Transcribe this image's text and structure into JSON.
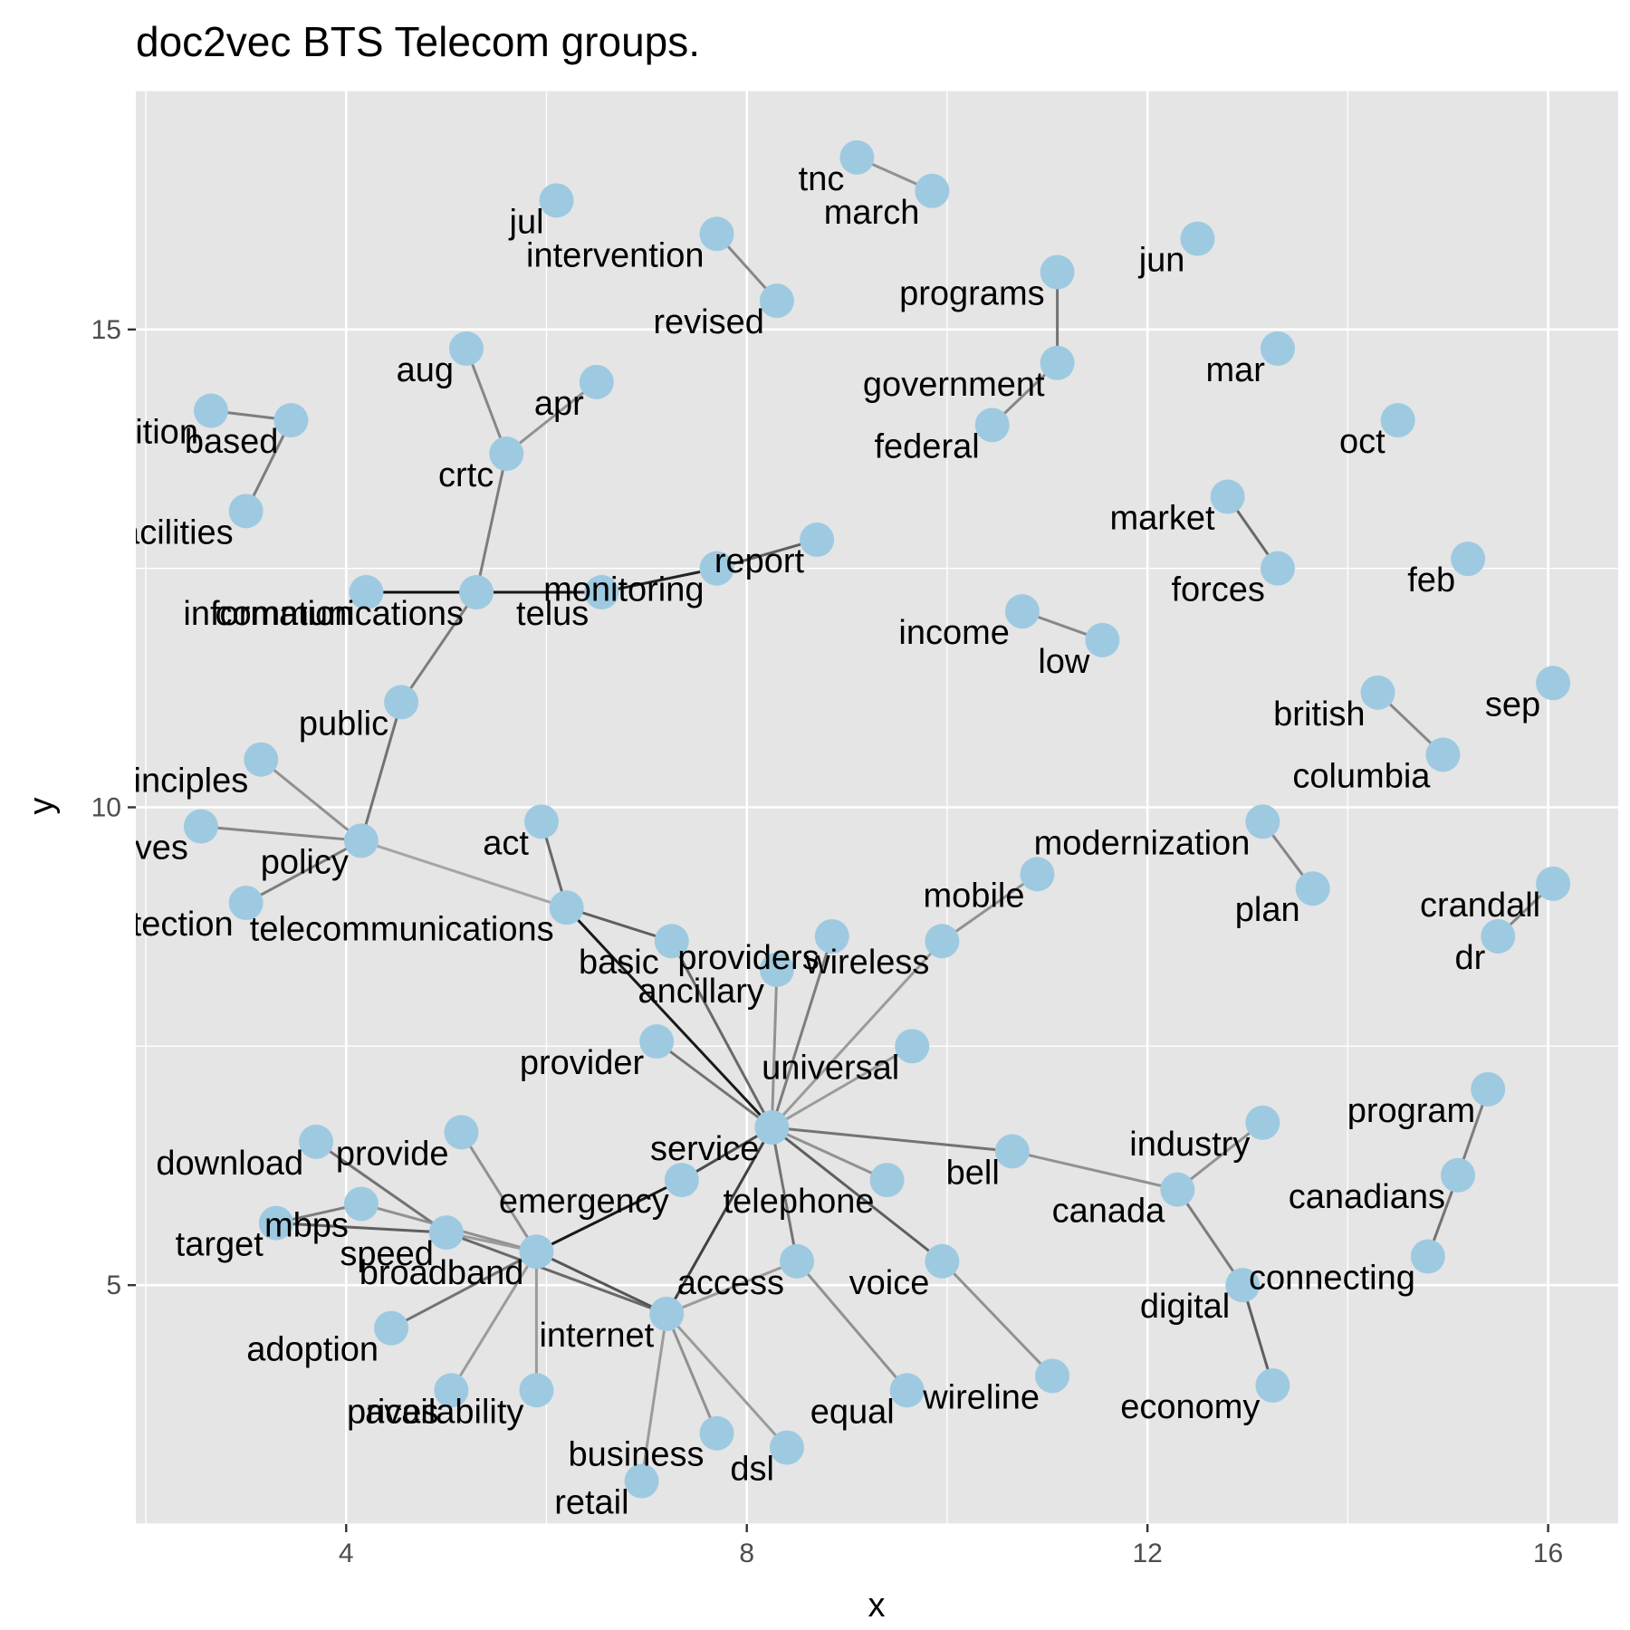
{
  "chart_data": {
    "type": "scatter",
    "title": "doc2vec BTS Telecom groups.",
    "xlabel": "x",
    "ylabel": "y",
    "xlim": [
      1.9,
      16.7
    ],
    "ylim": [
      2.5,
      17.5
    ],
    "x_ticks": [
      4,
      8,
      12,
      16
    ],
    "x_tick_labels": [
      "4",
      "8",
      "12",
      "16"
    ],
    "y_ticks": [
      5,
      10,
      15
    ],
    "y_tick_labels": [
      "5",
      "10",
      "15"
    ],
    "grid": true,
    "background": "#e5e5e5",
    "grid_color": "#ffffff",
    "point_color": "#9ecae1",
    "nodes": [
      {
        "name": "tnc",
        "x": 9.1,
        "y": 16.8
      },
      {
        "name": "march",
        "x": 9.85,
        "y": 16.45
      },
      {
        "name": "jul",
        "x": 6.1,
        "y": 16.35
      },
      {
        "name": "intervention",
        "x": 7.7,
        "y": 16.0
      },
      {
        "name": "jun",
        "x": 12.5,
        "y": 15.95
      },
      {
        "name": "programs",
        "x": 11.1,
        "y": 15.6
      },
      {
        "name": "revised",
        "x": 8.3,
        "y": 15.3
      },
      {
        "name": "aug",
        "x": 5.2,
        "y": 14.8
      },
      {
        "name": "mar",
        "x": 13.3,
        "y": 14.8
      },
      {
        "name": "government",
        "x": 11.1,
        "y": 14.65
      },
      {
        "name": "apr",
        "x": 6.5,
        "y": 14.45
      },
      {
        "name": "competition",
        "x": 2.65,
        "y": 14.15
      },
      {
        "name": "based",
        "x": 3.45,
        "y": 14.05
      },
      {
        "name": "oct",
        "x": 14.5,
        "y": 14.05
      },
      {
        "name": "federal",
        "x": 10.45,
        "y": 14.0
      },
      {
        "name": "crtc",
        "x": 5.6,
        "y": 13.7
      },
      {
        "name": "facilities",
        "x": 3.0,
        "y": 13.1
      },
      {
        "name": "market",
        "x": 12.8,
        "y": 13.25
      },
      {
        "name": "report",
        "x": 8.7,
        "y": 12.8
      },
      {
        "name": "feb",
        "x": 15.2,
        "y": 12.6
      },
      {
        "name": "monitoring",
        "x": 7.7,
        "y": 12.5
      },
      {
        "name": "forces",
        "x": 13.3,
        "y": 12.5
      },
      {
        "name": "information",
        "x": 4.2,
        "y": 12.25
      },
      {
        "name": "communications",
        "x": 5.3,
        "y": 12.25
      },
      {
        "name": "telus",
        "x": 6.55,
        "y": 12.25
      },
      {
        "name": "income",
        "x": 10.75,
        "y": 12.05
      },
      {
        "name": "low",
        "x": 11.55,
        "y": 11.75
      },
      {
        "name": "public",
        "x": 4.55,
        "y": 11.1
      },
      {
        "name": "british",
        "x": 14.3,
        "y": 11.2
      },
      {
        "name": "sep",
        "x": 16.05,
        "y": 11.3
      },
      {
        "name": "columbia",
        "x": 14.95,
        "y": 10.55
      },
      {
        "name": "principles",
        "x": 3.15,
        "y": 10.5
      },
      {
        "name": "objectives",
        "x": 2.55,
        "y": 9.8
      },
      {
        "name": "act",
        "x": 5.95,
        "y": 9.85
      },
      {
        "name": "modernization",
        "x": 13.15,
        "y": 9.85
      },
      {
        "name": "policy",
        "x": 4.15,
        "y": 9.65
      },
      {
        "name": "mobile",
        "x": 10.9,
        "y": 9.3
      },
      {
        "name": "plan",
        "x": 13.65,
        "y": 9.15
      },
      {
        "name": "crandall",
        "x": 16.05,
        "y": 9.2
      },
      {
        "name": "protection",
        "x": 3.0,
        "y": 9.0
      },
      {
        "name": "telecommunications",
        "x": 6.2,
        "y": 8.95
      },
      {
        "name": "dr",
        "x": 15.5,
        "y": 8.65
      },
      {
        "name": "providers",
        "x": 8.85,
        "y": 8.65
      },
      {
        "name": "basic",
        "x": 7.25,
        "y": 8.6
      },
      {
        "name": "wireless",
        "x": 9.95,
        "y": 8.6
      },
      {
        "name": "ancillary",
        "x": 8.3,
        "y": 8.3
      },
      {
        "name": "provider",
        "x": 7.1,
        "y": 7.55
      },
      {
        "name": "universal",
        "x": 9.65,
        "y": 7.5
      },
      {
        "name": "program",
        "x": 15.4,
        "y": 7.05
      },
      {
        "name": "industry",
        "x": 13.15,
        "y": 6.7
      },
      {
        "name": "service",
        "x": 8.25,
        "y": 6.65
      },
      {
        "name": "provide",
        "x": 5.15,
        "y": 6.6
      },
      {
        "name": "download",
        "x": 3.7,
        "y": 6.5
      },
      {
        "name": "bell",
        "x": 10.65,
        "y": 6.4
      },
      {
        "name": "canadians",
        "x": 15.1,
        "y": 6.15
      },
      {
        "name": "emergency",
        "x": 7.35,
        "y": 6.1
      },
      {
        "name": "telephone",
        "x": 9.4,
        "y": 6.1
      },
      {
        "name": "canada",
        "x": 12.3,
        "y": 6.0
      },
      {
        "name": "mbps",
        "x": 4.15,
        "y": 5.85
      },
      {
        "name": "target",
        "x": 3.3,
        "y": 5.65
      },
      {
        "name": "speed",
        "x": 5.0,
        "y": 5.55
      },
      {
        "name": "broadband",
        "x": 5.9,
        "y": 5.35
      },
      {
        "name": "access",
        "x": 8.5,
        "y": 5.25
      },
      {
        "name": "voice",
        "x": 9.95,
        "y": 5.25
      },
      {
        "name": "connecting",
        "x": 14.8,
        "y": 5.3
      },
      {
        "name": "digital",
        "x": 12.95,
        "y": 5.0
      },
      {
        "name": "internet",
        "x": 7.2,
        "y": 4.7
      },
      {
        "name": "adoption",
        "x": 4.45,
        "y": 4.55
      },
      {
        "name": "wireline",
        "x": 11.05,
        "y": 4.05
      },
      {
        "name": "availability",
        "x": 5.9,
        "y": 3.9
      },
      {
        "name": "prices",
        "x": 5.05,
        "y": 3.9
      },
      {
        "name": "equal",
        "x": 9.6,
        "y": 3.9
      },
      {
        "name": "economy",
        "x": 13.25,
        "y": 3.95
      },
      {
        "name": "business",
        "x": 7.7,
        "y": 3.45
      },
      {
        "name": "dsl",
        "x": 8.4,
        "y": 3.3
      },
      {
        "name": "retail",
        "x": 6.95,
        "y": 2.95
      }
    ],
    "edges": [
      {
        "source": "tnc",
        "target": "march",
        "weight": 0.35
      },
      {
        "source": "intervention",
        "target": "revised",
        "weight": 0.4
      },
      {
        "source": "programs",
        "target": "government",
        "weight": 0.5
      },
      {
        "source": "government",
        "target": "federal",
        "weight": 0.4
      },
      {
        "source": "aug",
        "target": "crtc",
        "weight": 0.4
      },
      {
        "source": "apr",
        "target": "crtc",
        "weight": 0.35
      },
      {
        "source": "crtc",
        "target": "communications",
        "weight": 0.45
      },
      {
        "source": "competition",
        "target": "based",
        "weight": 0.45
      },
      {
        "source": "based",
        "target": "facilities",
        "weight": 0.45
      },
      {
        "source": "market",
        "target": "forces",
        "weight": 0.55
      },
      {
        "source": "information",
        "target": "communications",
        "weight": 1.0
      },
      {
        "source": "communications",
        "target": "telus",
        "weight": 0.95
      },
      {
        "source": "telus",
        "target": "monitoring",
        "weight": 0.9
      },
      {
        "source": "monitoring",
        "target": "report",
        "weight": 0.6
      },
      {
        "source": "income",
        "target": "low",
        "weight": 0.4
      },
      {
        "source": "communications",
        "target": "public",
        "weight": 0.45
      },
      {
        "source": "public",
        "target": "policy",
        "weight": 0.5
      },
      {
        "source": "british",
        "target": "columbia",
        "weight": 0.4
      },
      {
        "source": "principles",
        "target": "policy",
        "weight": 0.35
      },
      {
        "source": "objectives",
        "target": "policy",
        "weight": 0.4
      },
      {
        "source": "protection",
        "target": "policy",
        "weight": 0.45
      },
      {
        "source": "policy",
        "target": "telecommunications",
        "weight": 0.25
      },
      {
        "source": "modernization",
        "target": "plan",
        "weight": 0.4
      },
      {
        "source": "crandall",
        "target": "dr",
        "weight": 0.4
      },
      {
        "source": "act",
        "target": "telecommunications",
        "weight": 0.55
      },
      {
        "source": "telecommunications",
        "target": "basic",
        "weight": 0.6
      },
      {
        "source": "telecommunications",
        "target": "service",
        "weight": 0.95
      },
      {
        "source": "basic",
        "target": "service",
        "weight": 0.55
      },
      {
        "source": "providers",
        "target": "service",
        "weight": 0.45
      },
      {
        "source": "ancillary",
        "target": "service",
        "weight": 0.35
      },
      {
        "source": "wireless",
        "target": "service",
        "weight": 0.3
      },
      {
        "source": "mobile",
        "target": "wireless",
        "weight": 0.35
      },
      {
        "source": "provider",
        "target": "service",
        "weight": 0.5
      },
      {
        "source": "universal",
        "target": "service",
        "weight": 0.3
      },
      {
        "source": "service",
        "target": "bell",
        "weight": 0.5
      },
      {
        "source": "bell",
        "target": "canada",
        "weight": 0.35
      },
      {
        "source": "industry",
        "target": "canada",
        "weight": 0.35
      },
      {
        "source": "canada",
        "target": "digital",
        "weight": 0.45
      },
      {
        "source": "digital",
        "target": "economy",
        "weight": 0.6
      },
      {
        "source": "program",
        "target": "canadians",
        "weight": 0.45
      },
      {
        "source": "canadians",
        "target": "connecting",
        "weight": 0.5
      },
      {
        "source": "service",
        "target": "telephone",
        "weight": 0.35
      },
      {
        "source": "service",
        "target": "access",
        "weight": 0.5
      },
      {
        "source": "service",
        "target": "voice",
        "weight": 0.6
      },
      {
        "source": "service",
        "target": "internet",
        "weight": 0.75
      },
      {
        "source": "service",
        "target": "emergency",
        "weight": 0.7
      },
      {
        "source": "emergency",
        "target": "broadband",
        "weight": 0.95
      },
      {
        "source": "voice",
        "target": "wireline",
        "weight": 0.35
      },
      {
        "source": "access",
        "target": "equal",
        "weight": 0.35
      },
      {
        "source": "access",
        "target": "internet",
        "weight": 0.3
      },
      {
        "source": "download",
        "target": "speed",
        "weight": 0.5
      },
      {
        "source": "provide",
        "target": "broadband",
        "weight": 0.35
      },
      {
        "source": "mbps",
        "target": "target",
        "weight": 0.45
      },
      {
        "source": "target",
        "target": "speed",
        "weight": 0.6
      },
      {
        "source": "mbps",
        "target": "broadband",
        "weight": 0.35
      },
      {
        "source": "speed",
        "target": "internet",
        "weight": 0.55
      },
      {
        "source": "speed",
        "target": "broadband",
        "weight": 0.3
      },
      {
        "source": "broadband",
        "target": "internet",
        "weight": 0.65
      },
      {
        "source": "broadband",
        "target": "adoption",
        "weight": 0.5
      },
      {
        "source": "broadband",
        "target": "prices",
        "weight": 0.3
      },
      {
        "source": "broadband",
        "target": "availability",
        "weight": 0.3
      },
      {
        "source": "internet",
        "target": "retail",
        "weight": 0.3
      },
      {
        "source": "internet",
        "target": "business",
        "weight": 0.35
      },
      {
        "source": "internet",
        "target": "dsl",
        "weight": 0.3
      }
    ]
  }
}
